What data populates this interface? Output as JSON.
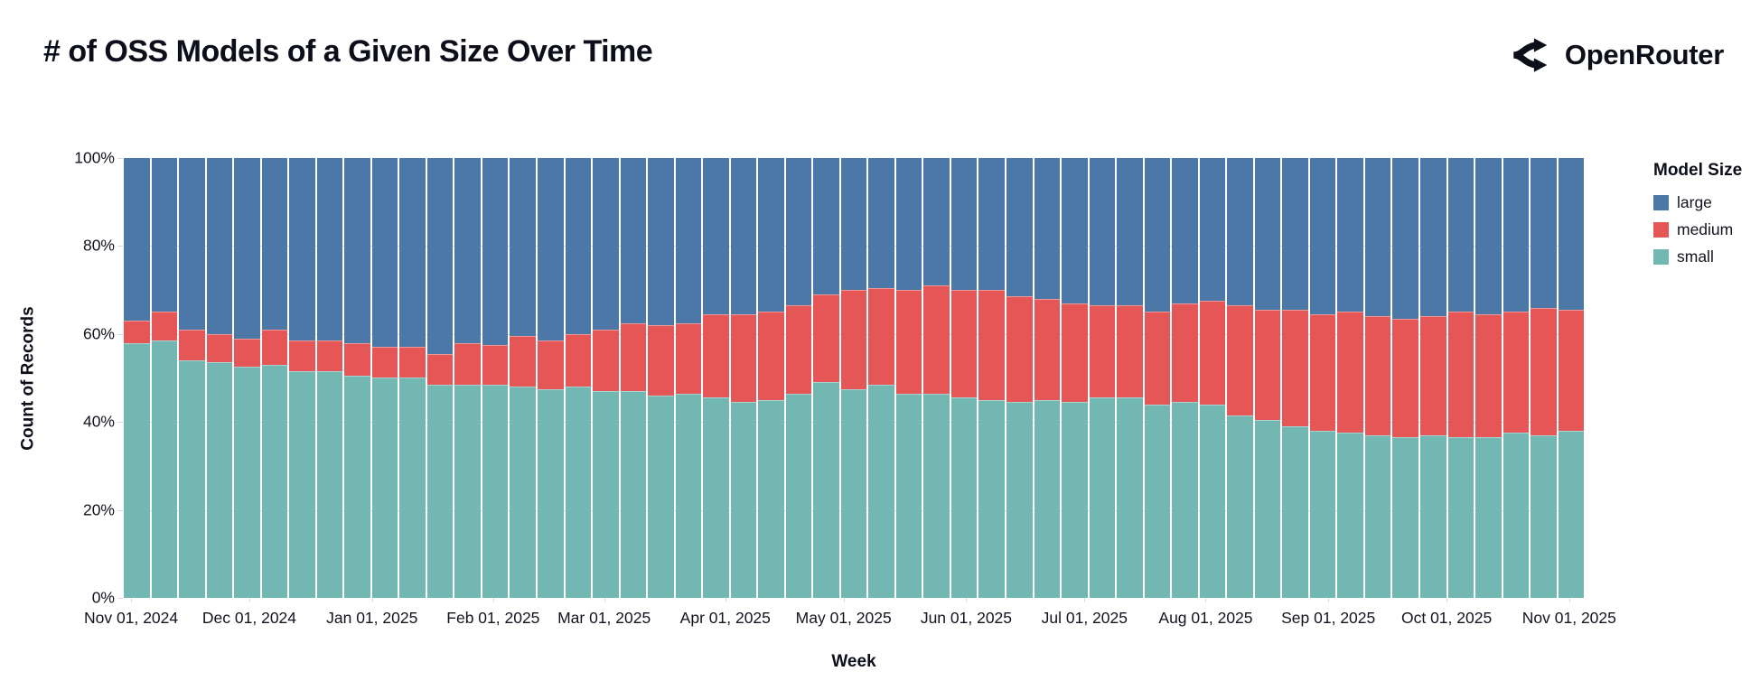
{
  "header": {
    "title": "# of OSS Models of a Given Size Over Time",
    "brand": "OpenRouter"
  },
  "chart_data": {
    "type": "bar",
    "stack": "normalize",
    "title": "# of OSS Models of a Given Size Over Time",
    "xlabel": "Week",
    "ylabel": "Count of Records",
    "ylim": [
      0,
      100
    ],
    "grid": true,
    "y_ticks": [
      0,
      20,
      40,
      60,
      80,
      100
    ],
    "y_tick_labels": [
      "0%",
      "20%",
      "40%",
      "60%",
      "80%",
      "100%"
    ],
    "x_ticks": [
      {
        "label": "Nov 01, 2024",
        "pos_pct": 0.5
      },
      {
        "label": "Dec 01, 2024",
        "pos_pct": 8.6
      },
      {
        "label": "Jan 01, 2025",
        "pos_pct": 17.0
      },
      {
        "label": "Feb 01, 2025",
        "pos_pct": 25.3
      },
      {
        "label": "Mar 01, 2025",
        "pos_pct": 32.9
      },
      {
        "label": "Apr 01, 2025",
        "pos_pct": 41.2
      },
      {
        "label": "May 01, 2025",
        "pos_pct": 49.3
      },
      {
        "label": "Jun 01, 2025",
        "pos_pct": 57.7
      },
      {
        "label": "Jul 01, 2025",
        "pos_pct": 65.8
      },
      {
        "label": "Aug 01, 2025",
        "pos_pct": 74.1
      },
      {
        "label": "Sep 01, 2025",
        "pos_pct": 82.5
      },
      {
        "label": "Oct 01, 2025",
        "pos_pct": 90.6
      },
      {
        "label": "Nov 01, 2025",
        "pos_pct": 99.0
      }
    ],
    "legend": {
      "title": "Model Size",
      "position": "right",
      "items": [
        {
          "label": "large",
          "color": "#4c78a8"
        },
        {
          "label": "medium",
          "color": "#e45756"
        },
        {
          "label": "small",
          "color": "#72b7b2"
        }
      ]
    },
    "categories": [
      "2024-10-27",
      "2024-11-03",
      "2024-11-10",
      "2024-11-17",
      "2024-11-24",
      "2024-12-01",
      "2024-12-08",
      "2024-12-15",
      "2024-12-22",
      "2024-12-29",
      "2025-01-05",
      "2025-01-12",
      "2025-01-19",
      "2025-01-26",
      "2025-02-02",
      "2025-02-09",
      "2025-02-16",
      "2025-02-23",
      "2025-03-02",
      "2025-03-09",
      "2025-03-16",
      "2025-03-23",
      "2025-03-30",
      "2025-04-06",
      "2025-04-13",
      "2025-04-20",
      "2025-04-27",
      "2025-05-04",
      "2025-05-11",
      "2025-05-18",
      "2025-05-25",
      "2025-06-01",
      "2025-06-08",
      "2025-06-15",
      "2025-06-22",
      "2025-06-29",
      "2025-07-06",
      "2025-07-13",
      "2025-07-20",
      "2025-07-27",
      "2025-08-03",
      "2025-08-10",
      "2025-08-17",
      "2025-08-24",
      "2025-08-31",
      "2025-09-07",
      "2025-09-14",
      "2025-09-21",
      "2025-09-28",
      "2025-10-05",
      "2025-10-12",
      "2025-10-19",
      "2025-10-26"
    ],
    "value_units": "percent of records (stacked to 100%)",
    "series": [
      {
        "name": "small",
        "color": "#72b7b2",
        "values": [
          58,
          58.5,
          54,
          53.5,
          52.5,
          53,
          51.5,
          51.5,
          50.5,
          50,
          50,
          48.5,
          48.5,
          48.5,
          48,
          47.5,
          48,
          47,
          47,
          46,
          46.5,
          45.5,
          44.5,
          45,
          46.5,
          49,
          47.5,
          48.5,
          46.5,
          46.5,
          45.5,
          45,
          44.5,
          45,
          44.5,
          45.5,
          45.5,
          44,
          44.5,
          44,
          41.5,
          40.5,
          39,
          38,
          37.5,
          37,
          36.5,
          37,
          36.5,
          36.5,
          37.5,
          37,
          38
        ]
      },
      {
        "name": "medium",
        "color": "#e45756",
        "values": [
          5,
          6.5,
          7,
          6.5,
          6.5,
          8,
          7,
          7,
          7.5,
          7,
          7,
          7,
          9.5,
          9,
          11.5,
          11,
          12,
          14,
          15.5,
          16,
          16,
          19,
          20,
          20,
          20,
          20,
          22.5,
          22,
          23.5,
          24.5,
          24.5,
          25,
          24,
          23,
          22.5,
          21,
          21,
          21,
          22.5,
          23.5,
          25,
          25,
          26.5,
          26.5,
          27.5,
          27,
          27,
          27,
          28.5,
          28,
          27.5,
          29,
          27.5
        ]
      },
      {
        "name": "large",
        "color": "#4c78a8",
        "values": [
          37,
          35,
          39,
          40,
          41,
          39,
          41.5,
          41.5,
          42,
          43,
          43,
          44.5,
          42,
          42.5,
          40.5,
          41.5,
          40,
          39,
          37.5,
          38,
          37.5,
          35.5,
          35.5,
          35,
          33.5,
          31,
          30,
          29.5,
          30,
          29,
          30,
          30,
          31.5,
          32,
          33,
          33.5,
          33.5,
          35,
          33,
          32.5,
          33.5,
          34.5,
          34.5,
          35.5,
          35,
          36,
          36.5,
          36,
          35,
          35.5,
          35,
          34,
          34.5
        ]
      }
    ]
  }
}
